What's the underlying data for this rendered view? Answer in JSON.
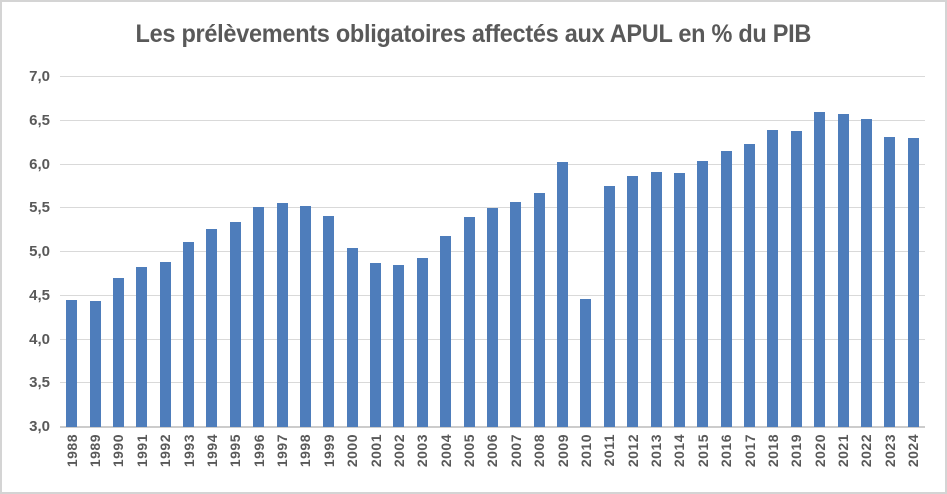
{
  "frame": {
    "background_color": "#FFFFFF",
    "border_color": "#D4D4D4"
  },
  "chart_data": {
    "type": "bar",
    "title": "Les prélèvements obligatoires affectés aux APUL en % du PIB",
    "xlabel": "",
    "ylabel": "",
    "ylim": [
      3.0,
      7.0
    ],
    "grid": true,
    "legend": "none",
    "bar_color": "#4E7DBB",
    "title_color": "#595959",
    "axis_text_color": "#595959",
    "gridline_color": "#D9D9D9",
    "yticks": [
      {
        "label": "7,0",
        "value": 7.0
      },
      {
        "label": "6,5",
        "value": 6.5
      },
      {
        "label": "6,0",
        "value": 6.0
      },
      {
        "label": "5,5",
        "value": 5.5
      },
      {
        "label": "5,0",
        "value": 5.0
      },
      {
        "label": "4,5",
        "value": 4.5
      },
      {
        "label": "4,0",
        "value": 4.0
      },
      {
        "label": "3,5",
        "value": 3.5
      },
      {
        "label": "3,0",
        "value": 3.0
      }
    ],
    "categories": [
      "1988",
      "1989",
      "1990",
      "1991",
      "1992",
      "1993",
      "1994",
      "1995",
      "1996",
      "1997",
      "1998",
      "1999",
      "2000",
      "2001",
      "2002",
      "2003",
      "2004",
      "2005",
      "2006",
      "2007",
      "2008",
      "2009",
      "2010",
      "2011",
      "2012",
      "2013",
      "2014",
      "2015",
      "2016",
      "2017",
      "2018",
      "2019",
      "2020",
      "2021",
      "2022",
      "2023",
      "2024"
    ],
    "values": [
      4.45,
      4.44,
      4.7,
      4.83,
      4.89,
      5.12,
      5.26,
      5.34,
      5.51,
      5.56,
      5.53,
      5.41,
      5.05,
      4.87,
      4.85,
      4.93,
      5.18,
      5.4,
      5.5,
      5.57,
      5.67,
      6.03,
      4.46,
      5.75,
      5.87,
      5.91,
      5.9,
      6.04,
      6.15,
      6.23,
      6.39,
      6.38,
      6.6,
      6.58,
      6.52,
      6.31,
      6.3
    ]
  }
}
